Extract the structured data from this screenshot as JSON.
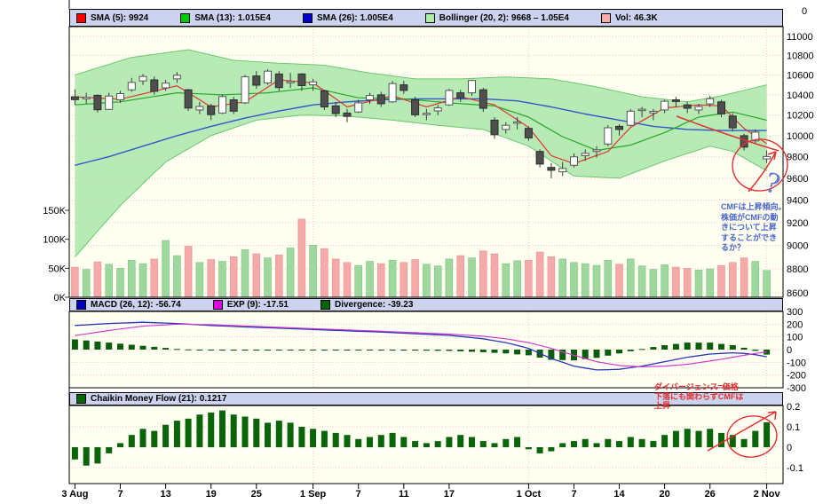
{
  "legend_top": {
    "items": [
      {
        "label": "SMA (5): 9924",
        "color": "#ff0000"
      },
      {
        "label": "SMA (13): 1.015E4",
        "color": "#00cc00"
      },
      {
        "label": "SMA (26): 1.005E4",
        "color": "#0000cc"
      },
      {
        "label": "Bollinger (20, 2): 9668 – 1.05E4",
        "color": "#aaeeaa"
      },
      {
        "label": "Vol: 46.3K",
        "color": "#ffaaaa"
      }
    ]
  },
  "legend_macd": {
    "items": [
      {
        "label": "MACD (26, 12): -56.74",
        "color": "#0000bb"
      },
      {
        "label": "EXP (9): -17.51",
        "color": "#dd00dd"
      },
      {
        "label": "Divergence: -39.23",
        "color": "#006600"
      }
    ]
  },
  "legend_cmf": {
    "items": [
      {
        "label": "Chaikin Money Flow (21): 0.1217",
        "color": "#006600"
      }
    ]
  },
  "axes": {
    "price_top_label": "0",
    "price_ticks": [
      11000,
      10800,
      10600,
      10400,
      10200,
      10000,
      9800,
      9600,
      9400,
      9200,
      9000,
      8800,
      8600
    ],
    "volume_ticks": [
      {
        "label": "150K",
        "v": 150
      },
      {
        "label": "100K",
        "v": 100
      },
      {
        "label": "50K",
        "v": 50
      },
      {
        "label": "0K",
        "v": 0
      }
    ],
    "macd_ticks": [
      300,
      200,
      100,
      0,
      -100,
      -200,
      -300
    ],
    "cmf_ticks": [
      {
        "label": "0.2",
        "v": 0.2
      },
      {
        "label": "0.1",
        "v": 0.1
      },
      {
        "label": "0",
        "v": 0
      },
      {
        "label": "-0.1",
        "v": -0.1
      }
    ],
    "date_ticks": [
      {
        "label": "3 Aug",
        "i": 0
      },
      {
        "label": "7",
        "i": 4
      },
      {
        "label": "13",
        "i": 8
      },
      {
        "label": "19",
        "i": 12
      },
      {
        "label": "25",
        "i": 16
      },
      {
        "label": "1 Sep",
        "i": 21
      },
      {
        "label": "7",
        "i": 25
      },
      {
        "label": "11",
        "i": 29
      },
      {
        "label": "17",
        "i": 33
      },
      {
        "label": "1 Oct",
        "i": 40
      },
      {
        "label": "7",
        "i": 44
      },
      {
        "label": "14",
        "i": 48
      },
      {
        "label": "20",
        "i": 52
      },
      {
        "label": "26",
        "i": 56
      },
      {
        "label": "2 Nov",
        "i": 61
      }
    ]
  },
  "chart_data": {
    "type": "candlestick",
    "panels": [
      "price+bollinger+volume",
      "macd",
      "chaikin-money-flow"
    ],
    "price_scale": "log",
    "price_range": [
      8600,
      11000
    ],
    "volume_range_k": [
      0,
      150
    ],
    "macd_range": [
      -300,
      300
    ],
    "cmf_range": [
      -0.1,
      0.2
    ],
    "month_gridline_indices": [
      21,
      40,
      61
    ],
    "candles": [
      [
        "8/3",
        10380,
        10455,
        10300,
        10352,
        52
      ],
      [
        "8/4",
        10360,
        10420,
        10310,
        10375,
        48
      ],
      [
        "8/5",
        10395,
        10405,
        10225,
        10252,
        61
      ],
      [
        "8/6",
        10255,
        10420,
        10250,
        10388,
        57
      ],
      [
        "8/7",
        10350,
        10440,
        10320,
        10412,
        50
      ],
      [
        "8/10",
        10450,
        10570,
        10430,
        10524,
        64
      ],
      [
        "8/11",
        10540,
        10610,
        10500,
        10585,
        58
      ],
      [
        "8/12",
        10550,
        10585,
        10400,
        10435,
        66
      ],
      [
        "8/13",
        10470,
        10550,
        10440,
        10517,
        98
      ],
      [
        "8/14",
        10560,
        10630,
        10520,
        10597,
        72
      ],
      [
        "8/17",
        10450,
        10460,
        10240,
        10268,
        88
      ],
      [
        "8/18",
        10250,
        10330,
        10210,
        10284,
        60
      ],
      [
        "8/19",
        10290,
        10310,
        10150,
        10204,
        65
      ],
      [
        "8/20",
        10220,
        10400,
        10210,
        10383,
        62
      ],
      [
        "8/21",
        10350,
        10380,
        10210,
        10238,
        70
      ],
      [
        "8/24",
        10320,
        10600,
        10310,
        10581,
        82
      ],
      [
        "8/25",
        10590,
        10640,
        10460,
        10497,
        75
      ],
      [
        "8/26",
        10520,
        10660,
        10500,
        10639,
        68
      ],
      [
        "8/27",
        10610,
        10640,
        10440,
        10473,
        73
      ],
      [
        "8/28",
        10520,
        10620,
        10470,
        10534,
        85
      ],
      [
        "8/31",
        10610,
        10620,
        10440,
        10492,
        135
      ],
      [
        "9/1",
        10500,
        10560,
        10440,
        10530,
        90
      ],
      [
        "9/2",
        10440,
        10450,
        10250,
        10280,
        84
      ],
      [
        "9/3",
        10290,
        10330,
        10180,
        10214,
        66
      ],
      [
        "9/4",
        10220,
        10260,
        10130,
        10187,
        60
      ],
      [
        "9/7",
        10230,
        10350,
        10220,
        10320,
        55
      ],
      [
        "9/8",
        10350,
        10420,
        10310,
        10393,
        62
      ],
      [
        "9/9",
        10400,
        10430,
        10280,
        10312,
        58
      ],
      [
        "9/10",
        10330,
        10540,
        10320,
        10513,
        64
      ],
      [
        "9/11",
        10500,
        10540,
        10410,
        10444,
        60
      ],
      [
        "9/14",
        10350,
        10380,
        10180,
        10202,
        65
      ],
      [
        "9/15",
        10210,
        10260,
        10150,
        10217,
        57
      ],
      [
        "9/16",
        10240,
        10300,
        10200,
        10270,
        54
      ],
      [
        "9/17",
        10300,
        10460,
        10290,
        10444,
        66
      ],
      [
        "9/18",
        10420,
        10450,
        10330,
        10370,
        72
      ],
      [
        "9/24",
        10420,
        10550,
        10390,
        10544,
        68
      ],
      [
        "9/25",
        10450,
        10470,
        10230,
        10266,
        80
      ],
      [
        "9/28",
        10150,
        10180,
        9970,
        10009,
        75
      ],
      [
        "9/29",
        10060,
        10130,
        10020,
        10100,
        58
      ],
      [
        "9/30",
        10120,
        10180,
        10060,
        10133,
        63
      ],
      [
        "10/1",
        10070,
        10090,
        9950,
        9979,
        64
      ],
      [
        "10/2",
        9850,
        9870,
        9700,
        9732,
        78
      ],
      [
        "10/5",
        9700,
        9740,
        9600,
        9674,
        70
      ],
      [
        "10/6",
        9660,
        9750,
        9620,
        9691,
        66
      ],
      [
        "10/7",
        9720,
        9830,
        9700,
        9799,
        60
      ],
      [
        "10/8",
        9810,
        9870,
        9760,
        9832,
        58
      ],
      [
        "10/9",
        9850,
        9900,
        9790,
        9865,
        55
      ],
      [
        "10/13",
        9920,
        10100,
        9900,
        10076,
        64
      ],
      [
        "10/14",
        10090,
        10110,
        10000,
        10060,
        57
      ],
      [
        "10/15",
        10100,
        10260,
        10090,
        10238,
        66
      ],
      [
        "10/16",
        10250,
        10280,
        10180,
        10257,
        54
      ],
      [
        "10/19",
        10220,
        10260,
        10150,
        10236,
        48
      ],
      [
        "10/20",
        10250,
        10350,
        10220,
        10336,
        56
      ],
      [
        "10/21",
        10350,
        10380,
        10280,
        10333,
        52
      ],
      [
        "10/22",
        10300,
        10330,
        10220,
        10267,
        50
      ],
      [
        "10/23",
        10250,
        10310,
        10210,
        10283,
        47
      ],
      [
        "10/26",
        10310,
        10390,
        10280,
        10362,
        49
      ],
      [
        "10/27",
        10330,
        10350,
        10180,
        10212,
        55
      ],
      [
        "10/28",
        10190,
        10220,
        10040,
        10075,
        60
      ],
      [
        "10/29",
        10000,
        10020,
        9860,
        9891,
        68
      ],
      [
        "10/30",
        9950,
        10060,
        9920,
        10034,
        62
      ],
      [
        "11/2",
        9780,
        9860,
        9740,
        9802,
        46.3
      ]
    ],
    "sma5": [
      [
        0,
        10380
      ],
      [
        4,
        10356
      ],
      [
        9,
        10490
      ],
      [
        12,
        10280
      ],
      [
        15,
        10330
      ],
      [
        18,
        10550
      ],
      [
        21,
        10520
      ],
      [
        24,
        10280
      ],
      [
        28,
        10390
      ],
      [
        31,
        10280
      ],
      [
        34,
        10380
      ],
      [
        37,
        10300
      ],
      [
        40,
        10080
      ],
      [
        42,
        9810
      ],
      [
        44,
        9735
      ],
      [
        47,
        9850
      ],
      [
        49,
        10080
      ],
      [
        52,
        10270
      ],
      [
        55,
        10300
      ],
      [
        57,
        10290
      ],
      [
        59,
        10070
      ],
      [
        61,
        9924
      ]
    ],
    "sma13": [
      [
        0,
        10300
      ],
      [
        4,
        10330
      ],
      [
        9,
        10420
      ],
      [
        13,
        10400
      ],
      [
        17,
        10420
      ],
      [
        21,
        10470
      ],
      [
        25,
        10370
      ],
      [
        29,
        10360
      ],
      [
        33,
        10320
      ],
      [
        37,
        10290
      ],
      [
        40,
        10180
      ],
      [
        43,
        9990
      ],
      [
        46,
        9860
      ],
      [
        49,
        9910
      ],
      [
        52,
        10030
      ],
      [
        55,
        10180
      ],
      [
        58,
        10230
      ],
      [
        61,
        10150
      ]
    ],
    "sma26": [
      [
        0,
        9720
      ],
      [
        3,
        9800
      ],
      [
        6,
        9900
      ],
      [
        9,
        10000
      ],
      [
        12,
        10090
      ],
      [
        15,
        10170
      ],
      [
        18,
        10240
      ],
      [
        21,
        10300
      ],
      [
        24,
        10330
      ],
      [
        27,
        10350
      ],
      [
        30,
        10360
      ],
      [
        33,
        10360
      ],
      [
        36,
        10360
      ],
      [
        39,
        10340
      ],
      [
        42,
        10280
      ],
      [
        45,
        10210
      ],
      [
        48,
        10150
      ],
      [
        51,
        10090
      ],
      [
        54,
        10060
      ],
      [
        57,
        10050
      ],
      [
        61,
        10050
      ]
    ],
    "bb_upper": [
      [
        0,
        10600
      ],
      [
        5,
        10780
      ],
      [
        10,
        10860
      ],
      [
        14,
        10750
      ],
      [
        18,
        10720
      ],
      [
        22,
        10700
      ],
      [
        26,
        10620
      ],
      [
        30,
        10560
      ],
      [
        34,
        10560
      ],
      [
        38,
        10580
      ],
      [
        42,
        10560
      ],
      [
        46,
        10480
      ],
      [
        50,
        10380
      ],
      [
        54,
        10330
      ],
      [
        57,
        10390
      ],
      [
        61,
        10500
      ]
    ],
    "bb_lower": [
      [
        0,
        8900
      ],
      [
        4,
        9350
      ],
      [
        8,
        9750
      ],
      [
        12,
        10000
      ],
      [
        16,
        10150
      ],
      [
        20,
        10200
      ],
      [
        24,
        10190
      ],
      [
        28,
        10150
      ],
      [
        32,
        10100
      ],
      [
        36,
        10060
      ],
      [
        40,
        9900
      ],
      [
        44,
        9620
      ],
      [
        48,
        9600
      ],
      [
        52,
        9760
      ],
      [
        56,
        9900
      ],
      [
        58,
        9850
      ],
      [
        61,
        9668
      ]
    ],
    "macd_line": [
      [
        0,
        190
      ],
      [
        3,
        205
      ],
      [
        6,
        215
      ],
      [
        9,
        205
      ],
      [
        12,
        190
      ],
      [
        15,
        178
      ],
      [
        18,
        168
      ],
      [
        21,
        158
      ],
      [
        24,
        148
      ],
      [
        27,
        138
      ],
      [
        30,
        125
      ],
      [
        33,
        112
      ],
      [
        36,
        85
      ],
      [
        38,
        55
      ],
      [
        40,
        10
      ],
      [
        42,
        -70
      ],
      [
        44,
        -130
      ],
      [
        46,
        -160
      ],
      [
        48,
        -155
      ],
      [
        50,
        -130
      ],
      [
        52,
        -95
      ],
      [
        54,
        -60
      ],
      [
        56,
        -35
      ],
      [
        58,
        -25
      ],
      [
        59,
        -30
      ],
      [
        60,
        -40
      ],
      [
        61,
        -56.74
      ]
    ],
    "macd_signal": [
      [
        0,
        110
      ],
      [
        3,
        150
      ],
      [
        6,
        185
      ],
      [
        9,
        200
      ],
      [
        12,
        196
      ],
      [
        15,
        186
      ],
      [
        18,
        175
      ],
      [
        21,
        165
      ],
      [
        24,
        155
      ],
      [
        27,
        145
      ],
      [
        30,
        133
      ],
      [
        33,
        122
      ],
      [
        36,
        105
      ],
      [
        38,
        85
      ],
      [
        40,
        55
      ],
      [
        42,
        10
      ],
      [
        44,
        -45
      ],
      [
        46,
        -95
      ],
      [
        48,
        -125
      ],
      [
        50,
        -135
      ],
      [
        52,
        -130
      ],
      [
        54,
        -115
      ],
      [
        56,
        -90
      ],
      [
        58,
        -60
      ],
      [
        60,
        -30
      ],
      [
        61,
        -17.51
      ]
    ],
    "cmf": [
      -0.06,
      -0.09,
      -0.08,
      -0.03,
      0.02,
      0.06,
      0.09,
      0.08,
      0.11,
      0.13,
      0.14,
      0.16,
      0.17,
      0.18,
      0.16,
      0.15,
      0.14,
      0.12,
      0.13,
      0.12,
      0.1,
      0.09,
      0.08,
      0.07,
      0.06,
      0.04,
      0.05,
      0.06,
      0.07,
      0.05,
      0.03,
      0.02,
      0.03,
      0.05,
      0.06,
      0.05,
      0.03,
      0.02,
      0.04,
      0.05,
      -0.01,
      -0.03,
      -0.02,
      0.02,
      0.03,
      0.04,
      0.02,
      0.04,
      0.03,
      0.05,
      0.04,
      0.03,
      0.06,
      0.08,
      0.09,
      0.08,
      0.09,
      0.07,
      0.06,
      0.04,
      0.08,
      0.1217
    ]
  },
  "annotations": {
    "price_note": {
      "color": "#4a66c8",
      "lines": [
        "CMFは上昇傾向。",
        "株価がCMFの動",
        "きについて上昇",
        "することができ",
        "るか？"
      ]
    },
    "question_mark": "?",
    "cmf_note": {
      "color": "#e03030",
      "lines": [
        "ダイバージェンス=価格",
        "下落にも関わらずCMFは",
        "上昇"
      ]
    }
  },
  "colors": {
    "panel_bg": "#fffff2",
    "strip_bg": "#ccd3ee",
    "grid": "#eec6c6",
    "band_fill": "#ace6ac",
    "band_edge": "#6cc96c",
    "sma5": "#e23333",
    "sma13": "#22aa22",
    "sma26": "#3355cc",
    "candle_down": "#4f4f4f",
    "vol_up": "#9fd89f",
    "vol_down": "#f5a9a9",
    "macd": "#2637b8",
    "macd_signal": "#cf3ecf",
    "histogram": "#0b5d0b",
    "cmf_bar": "#0a640a",
    "annotation_red": "#e03030",
    "annotation_blue": "#4a66c8"
  }
}
